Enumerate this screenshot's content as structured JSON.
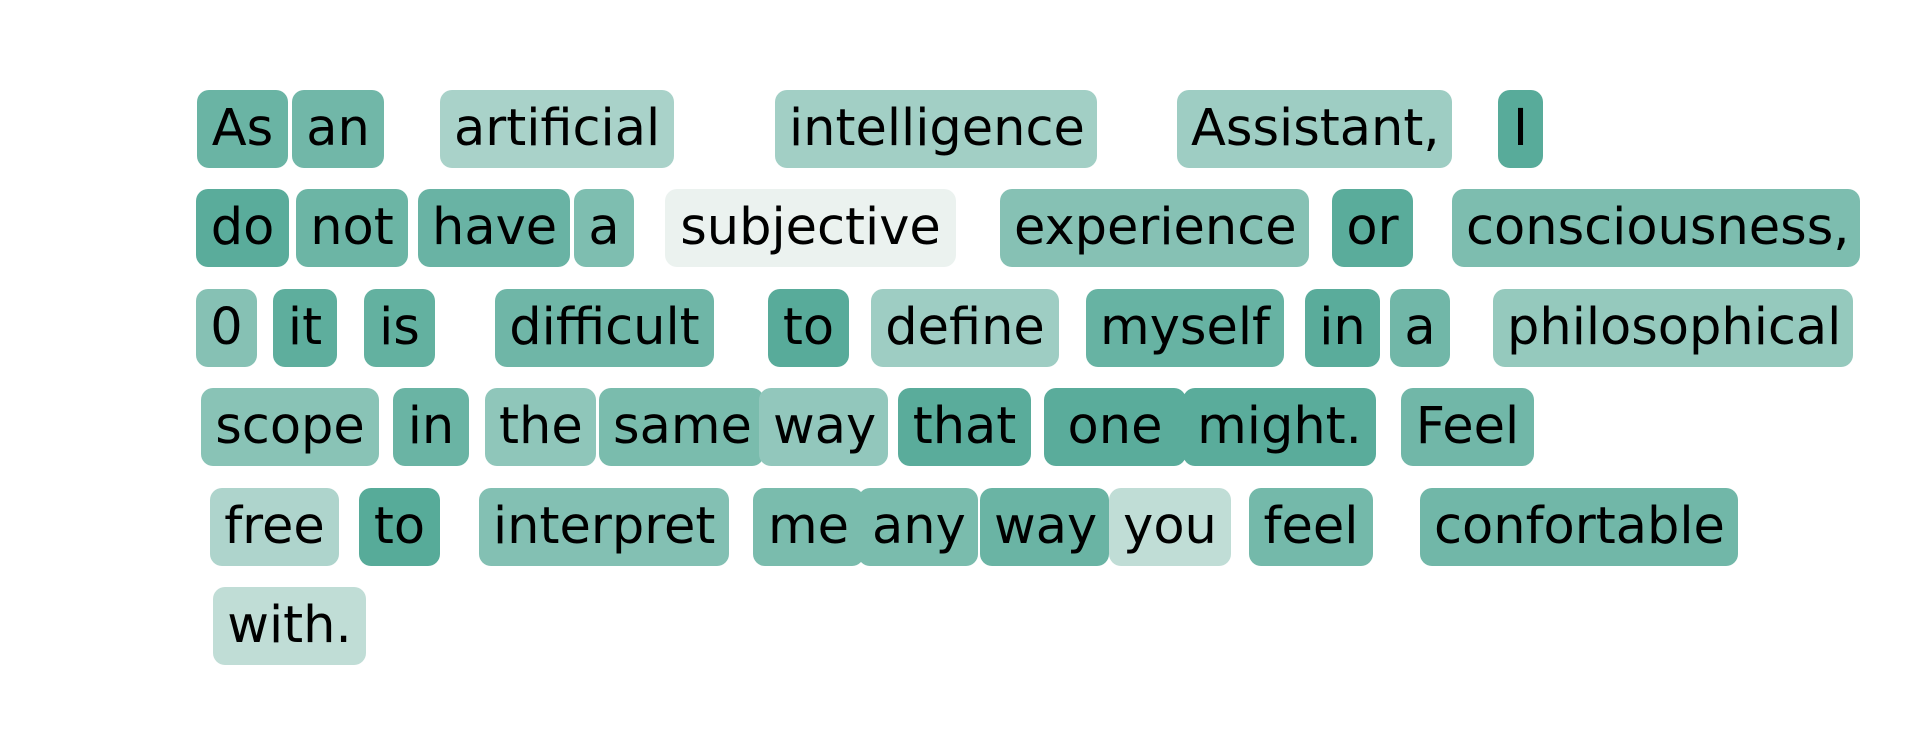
{
  "palette": {
    "low": "#eef3f1",
    "high": "#55aa98"
  },
  "rows": [
    {
      "tokens": [
        {
          "text": "As",
          "weight": 0.86
        },
        {
          "text": "an",
          "weight": 0.82
        },
        {
          "text": "artificial",
          "weight": 0.45
        },
        {
          "text": "intelligence",
          "weight": 0.5
        },
        {
          "text": "Assistant,",
          "weight": 0.52
        },
        {
          "text": "I",
          "weight": 0.98
        }
      ]
    },
    {
      "tokens": [
        {
          "text": "do",
          "weight": 0.97
        },
        {
          "text": "not",
          "weight": 0.85
        },
        {
          "text": "have",
          "weight": 0.87
        },
        {
          "text": "a",
          "weight": 0.73
        },
        {
          "text": "subjective",
          "weight": 0.02
        },
        {
          "text": "experience",
          "weight": 0.68
        },
        {
          "text": "or",
          "weight": 0.97
        },
        {
          "text": "consciousness,",
          "weight": 0.74
        }
      ]
    },
    {
      "tokens": [
        {
          "text": "0",
          "weight": 0.68
        },
        {
          "text": "it",
          "weight": 0.94
        },
        {
          "text": "is",
          "weight": 0.91
        },
        {
          "text": "difficult",
          "weight": 0.83
        },
        {
          "text": "to",
          "weight": 0.98
        },
        {
          "text": "define",
          "weight": 0.52
        },
        {
          "text": "myself",
          "weight": 0.88
        },
        {
          "text": "in",
          "weight": 0.97
        },
        {
          "text": "a",
          "weight": 0.82
        },
        {
          "text": "philosophical",
          "weight": 0.58
        }
      ]
    },
    {
      "tokens": [
        {
          "text": "scope",
          "weight": 0.66
        },
        {
          "text": "in",
          "weight": 0.86
        },
        {
          "text": "the",
          "weight": 0.62
        },
        {
          "text": "same",
          "weight": 0.76
        },
        {
          "text": "way",
          "weight": 0.6
        },
        {
          "text": "that",
          "weight": 0.97
        },
        {
          "text": "one",
          "weight": 0.97
        },
        {
          "text": "might.",
          "weight": 0.97
        },
        {
          "text": "Feel",
          "weight": 0.82
        }
      ]
    },
    {
      "tokens": [
        {
          "text": "free",
          "weight": 0.42
        },
        {
          "text": "to",
          "weight": 0.99
        },
        {
          "text": "interpret",
          "weight": 0.7
        },
        {
          "text": "me",
          "weight": 0.76
        },
        {
          "text": "any",
          "weight": 0.76
        },
        {
          "text": "way",
          "weight": 0.86
        },
        {
          "text": "you",
          "weight": 0.3
        },
        {
          "text": "feel",
          "weight": 0.8
        },
        {
          "text": "confortable",
          "weight": 0.82
        }
      ]
    },
    {
      "tokens": [
        {
          "text": "with.",
          "weight": 0.3
        }
      ]
    }
  ]
}
